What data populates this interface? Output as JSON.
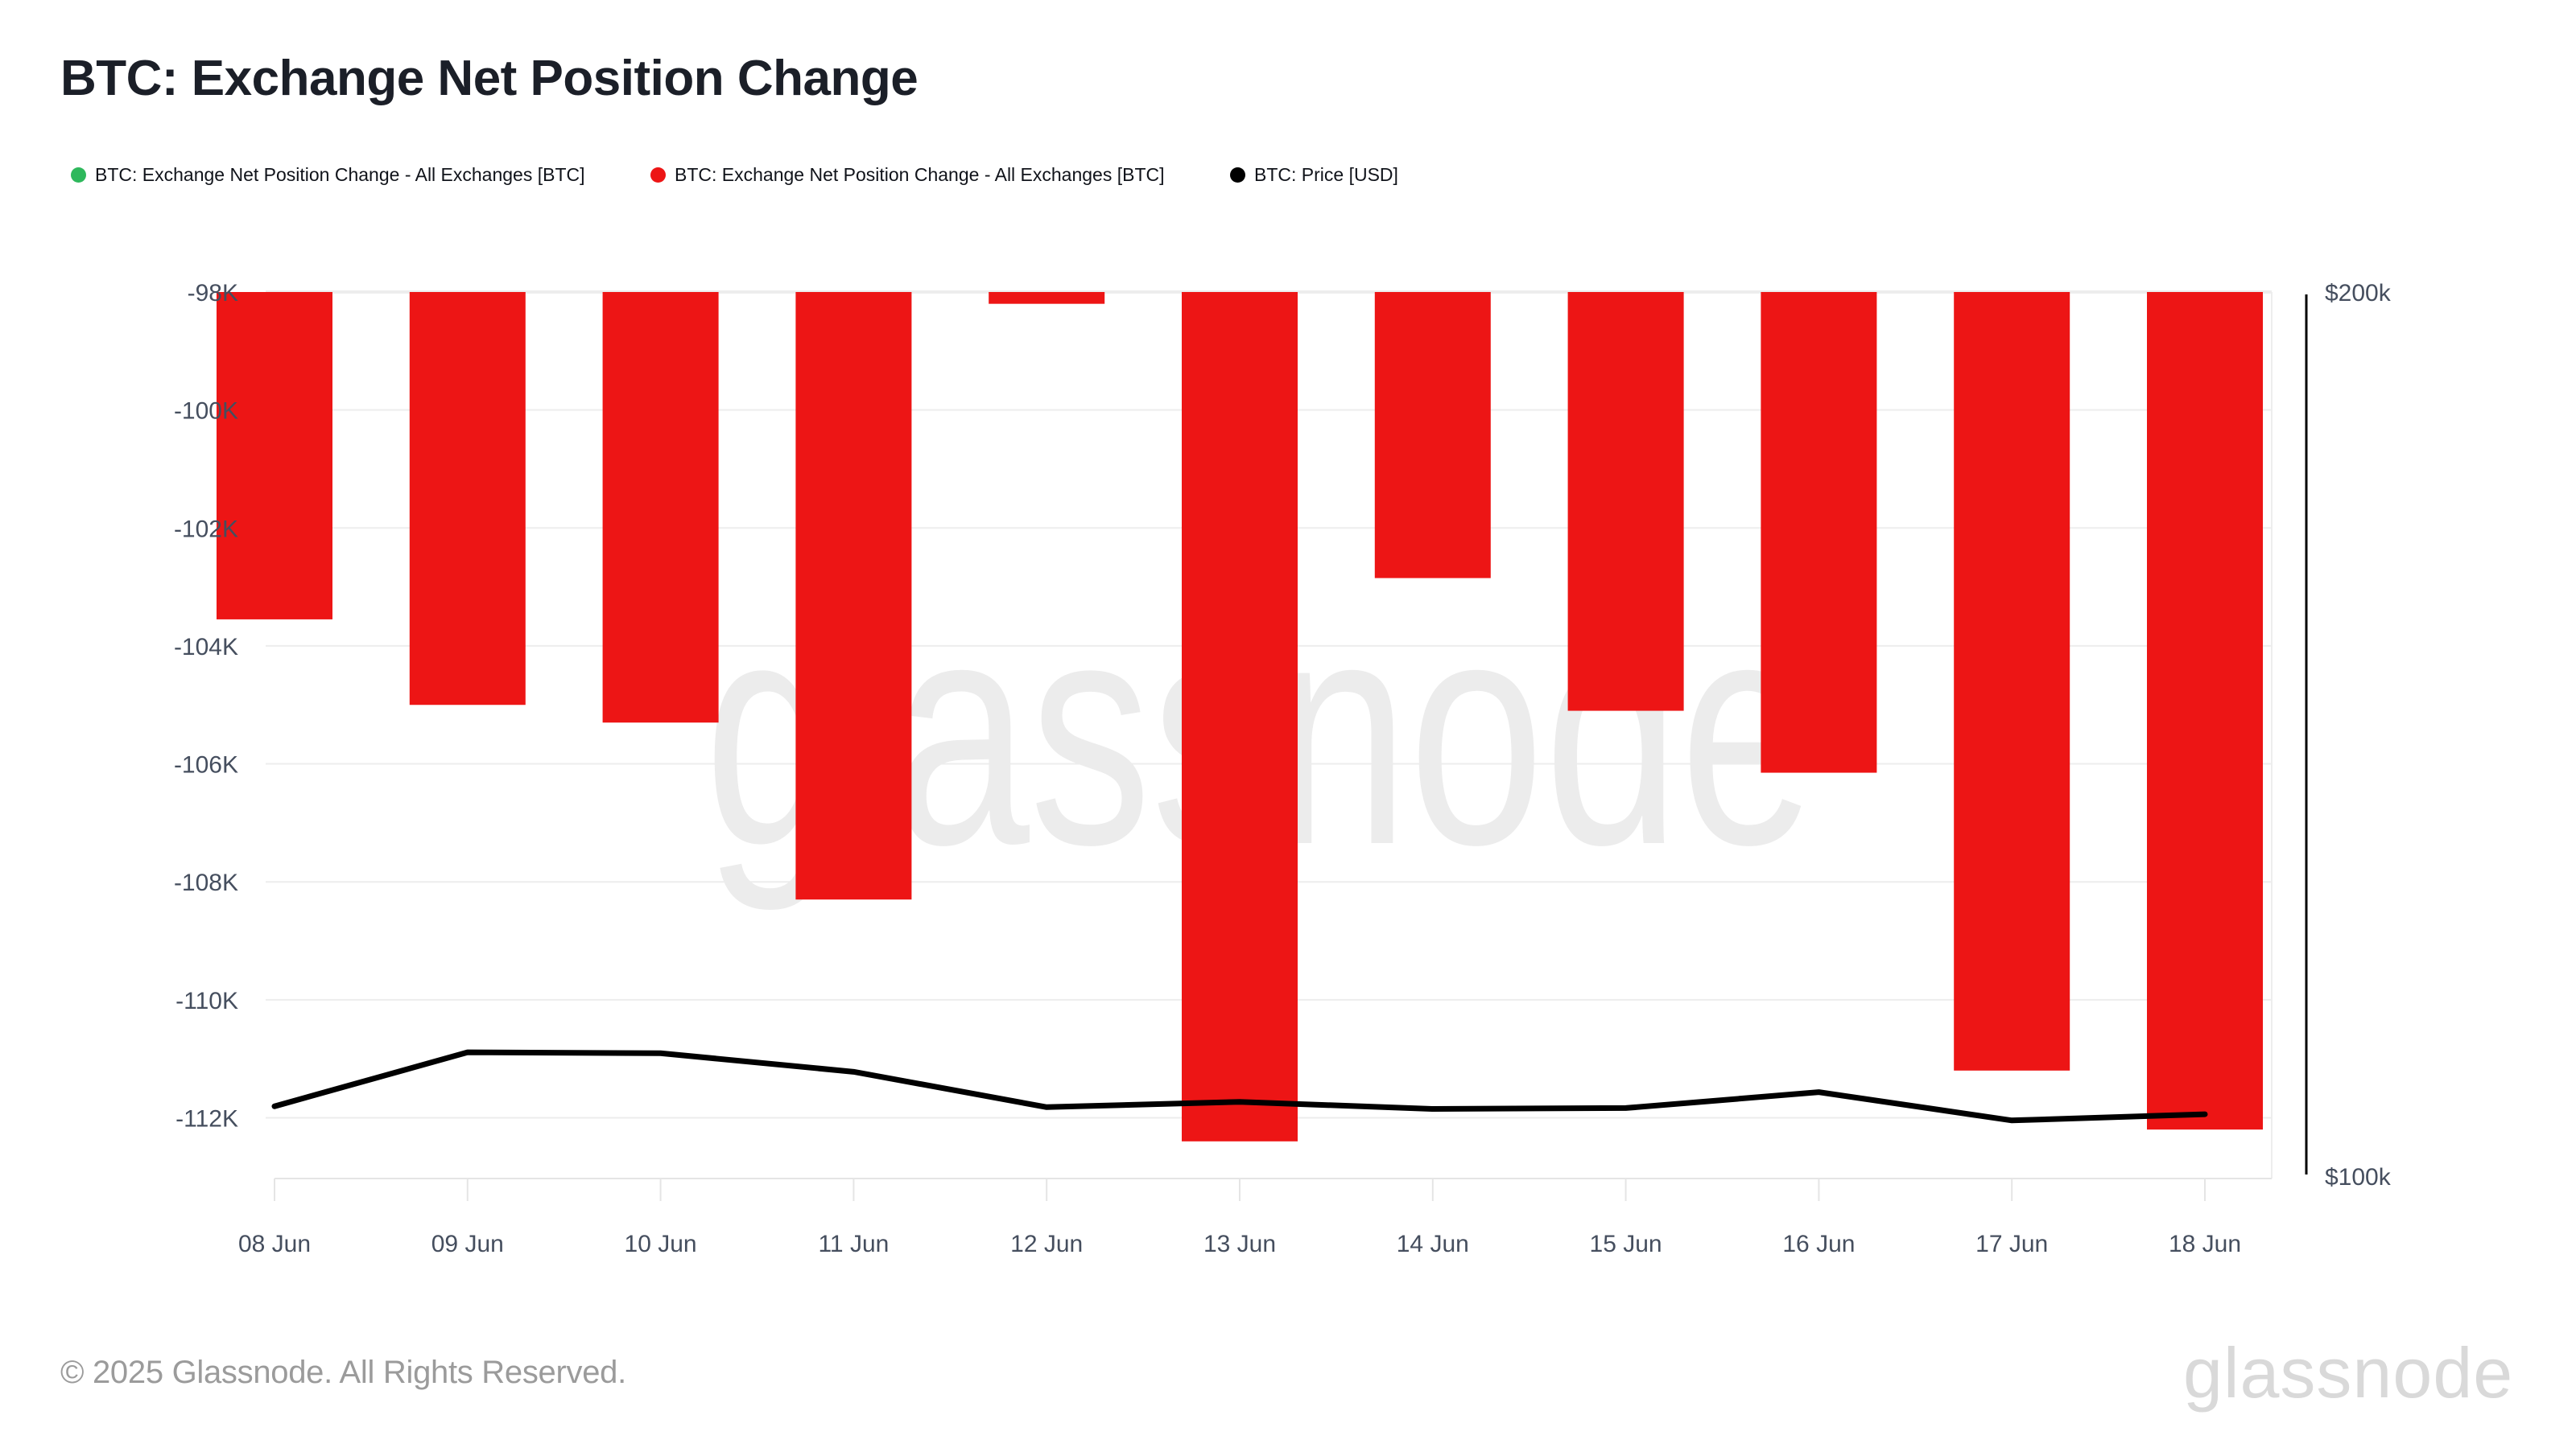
{
  "header": {
    "title": "BTC: Exchange Net Position Change"
  },
  "legend": {
    "items": [
      {
        "name": "net-position-change-green",
        "label": "BTC: Exchange Net Position Change - All Exchanges [BTC]",
        "color": "#2eb85c"
      },
      {
        "name": "net-position-change-red",
        "label": "BTC: Exchange Net Position Change - All Exchanges [BTC]",
        "color": "#ed1515"
      },
      {
        "name": "price",
        "label": "BTC: Price [USD]",
        "color": "#000000"
      }
    ]
  },
  "chart_data": {
    "type": "bar",
    "title": "BTC: Exchange Net Position Change",
    "categories": [
      "08 Jun",
      "09 Jun",
      "10 Jun",
      "11 Jun",
      "12 Jun",
      "13 Jun",
      "14 Jun",
      "15 Jun",
      "16 Jun",
      "17 Jun",
      "18 Jun"
    ],
    "series": [
      {
        "name": "BTC: Exchange Net Position Change - All Exchanges [BTC]",
        "type": "bar",
        "axis": "left",
        "unit": "BTC",
        "color": "#ed1515",
        "values": [
          -103550,
          -105000,
          -105300,
          -108300,
          -98200,
          -112400,
          -102850,
          -105100,
          -106150,
          -111200,
          -112200
        ]
      },
      {
        "name": "BTC: Price [USD]",
        "type": "line",
        "axis": "right",
        "unit": "USD",
        "color": "#000000",
        "values": [
          107900,
          114000,
          113900,
          111800,
          107800,
          108400,
          107600,
          107700,
          109500,
          106300,
          107000
        ]
      }
    ],
    "left_axis": {
      "labels": [
        "-98K",
        "-100K",
        "-102K",
        "-104K",
        "-106K",
        "-108K",
        "-110K",
        "-112K"
      ],
      "tick_values": [
        -98000,
        -100000,
        -102000,
        -104000,
        -106000,
        -108000,
        -110000,
        -112000
      ],
      "max": -98000,
      "min": -113030
    },
    "right_axis": {
      "labels": [
        "$200k",
        "$100k"
      ],
      "tick_values": [
        200000,
        100000
      ],
      "max": 200000,
      "min": 99730
    },
    "grid": "horizontal-only",
    "legend_position": "top",
    "watermark": "glassnode",
    "colors": {
      "bar": "#ed1515",
      "price_line": "#000000",
      "gridline": "#ededed",
      "axis_border": "#e5e5e5",
      "tick_label": "#454e5e",
      "watermark": "#ececec"
    }
  },
  "footer": {
    "copyright": "© 2025 Glassnode. All Rights Reserved.",
    "logo_text": "glassnode"
  }
}
